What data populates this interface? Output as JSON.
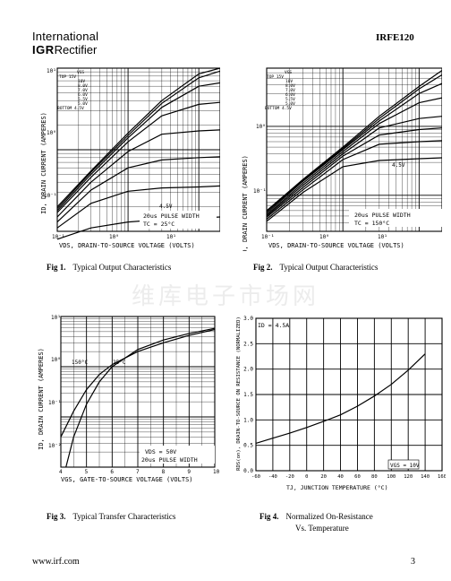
{
  "header": {
    "company_line1": "International",
    "company_line2_bold": "IGR",
    "company_line2_rest": "Rectifier",
    "part_number": "IRFE120"
  },
  "watermark": "维库电子市场网",
  "footer": {
    "url": "www.irf.com",
    "page": "3"
  },
  "figures": [
    {
      "number": "Fig 1.",
      "caption": "Typical Output Characteristics",
      "ylabel": "ID, DRAIN CURRENT (AMPERES)",
      "xlabel": "VDS, DRAIN-TO-SOURCE VOLTAGE (VOLTS)",
      "yticks": [
        "10¹",
        "10⁰",
        "10⁻¹"
      ],
      "xticks": [
        "10⁻¹",
        "10⁰",
        "10¹"
      ],
      "legend": [
        "VGS",
        "TOP  15V",
        "10V",
        "8.0V",
        "7.0V",
        "6.0V",
        "5.5V",
        "5.0V",
        "BOTTOM 4.5V"
      ],
      "curve_label": "4.5V",
      "note1": "20us PULSE WIDTH",
      "note2": "TC = 25°C"
    },
    {
      "number": "Fig 2.",
      "caption": "Typical Output Characteristics",
      "ylabel": "ID, DRAIN CURRENT (AMPERES)",
      "xlabel": "VDS, DRAIN-TO-SOURCE VOLTAGE (VOLTS)",
      "yticks": [
        "10⁰",
        "10⁻¹"
      ],
      "xticks": [
        "10⁻¹",
        "10⁰",
        "10¹"
      ],
      "legend": [
        "VGS",
        "TOP  15V",
        "10V",
        "8.0V",
        "7.0V",
        "6.0V",
        "5.5V",
        "5.0V",
        "BOTTOM 4.5V"
      ],
      "curve_label": "4.5V",
      "note1": "20us PULSE WIDTH",
      "note2": "TC = 150°C"
    },
    {
      "number": "Fig 3.",
      "caption": "Typical Transfer Characteristics",
      "ylabel": "ID, DRAIN CURRENT (AMPERES)",
      "xlabel": "VGS, GATE-TO-SOURCE VOLTAGE (VOLTS)",
      "yticks": [
        "10¹",
        "10⁰",
        "10⁻¹",
        "10⁻²"
      ],
      "xticks": [
        "4",
        "5",
        "6",
        "7",
        "8",
        "9",
        "10"
      ],
      "label_150": "150°C",
      "label_25": "25°C",
      "note1": "VDS = 50V",
      "note2": "20us PULSE WIDTH"
    },
    {
      "number": "Fig 4.",
      "caption": "Normalized On-Resistance",
      "caption2": "Vs. Temperature",
      "ylabel": "RDS(on), DRAIN-TO-SOURCE ON RESISTANCE (NORMALIZED)",
      "xlabel": "TJ, JUNCTION TEMPERATURE (°C)",
      "yticks": [
        "3.0",
        "2.5",
        "2.0",
        "1.5",
        "1.0",
        "0.5",
        "0.0"
      ],
      "xticks": [
        "-60",
        "-40",
        "-20",
        "0",
        "20",
        "40",
        "60",
        "80",
        "100",
        "120",
        "140",
        "160"
      ],
      "note_id": "ID = 4.5A",
      "note_vgs": "VGS = 10V"
    }
  ],
  "chart_data": [
    {
      "type": "line",
      "title": "Typical Output Characteristics",
      "scale": "log-log",
      "xlabel": "VDS, DRAIN-TO-SOURCE VOLTAGE (VOLTS)",
      "ylabel": "ID, DRAIN CURRENT (AMPERES)",
      "xlim": [
        0.1,
        20
      ],
      "ylim": [
        0.1,
        10
      ],
      "series": [
        {
          "name": "15V",
          "x": [
            0.1,
            0.3,
            1,
            3,
            10,
            20
          ],
          "y": [
            0.2,
            0.55,
            1.6,
            4.0,
            8.5,
            10
          ]
        },
        {
          "name": "10V",
          "x": [
            0.1,
            0.3,
            1,
            3,
            10,
            20
          ],
          "y": [
            0.19,
            0.53,
            1.5,
            3.7,
            7.6,
            9.2
          ]
        },
        {
          "name": "8.0V",
          "x": [
            0.1,
            0.3,
            1,
            3,
            10,
            20
          ],
          "y": [
            0.18,
            0.5,
            1.4,
            3.3,
            6.0,
            6.6
          ]
        },
        {
          "name": "7.0V",
          "x": [
            0.1,
            0.3,
            1,
            3,
            10,
            20
          ],
          "y": [
            0.17,
            0.46,
            1.25,
            2.6,
            3.6,
            3.8
          ]
        },
        {
          "name": "6.0V",
          "x": [
            0.1,
            0.3,
            1,
            3,
            10,
            20
          ],
          "y": [
            0.15,
            0.4,
            0.95,
            1.55,
            1.7,
            1.75
          ]
        },
        {
          "name": "5.5V",
          "x": [
            0.1,
            0.3,
            1,
            3,
            10,
            20
          ],
          "y": [
            0.13,
            0.32,
            0.6,
            0.75,
            0.8,
            0.82
          ]
        },
        {
          "name": "5.0V",
          "x": [
            0.1,
            0.3,
            1,
            3,
            10,
            20
          ],
          "y": [
            0.11,
            0.22,
            0.31,
            0.34,
            0.35,
            0.36
          ]
        },
        {
          "name": "4.5V",
          "x": [
            0.1,
            0.3,
            1,
            3,
            10,
            20
          ],
          "y": [
            0.08,
            0.11,
            0.13,
            0.14,
            0.145,
            0.15
          ]
        }
      ]
    },
    {
      "type": "line",
      "title": "Typical Output Characteristics",
      "scale": "log-log",
      "xlabel": "VDS, DRAIN-TO-SOURCE VOLTAGE (VOLTS)",
      "ylabel": "ID, DRAIN CURRENT (AMPERES)",
      "xlim": [
        0.1,
        20
      ],
      "ylim": [
        0.03,
        7
      ],
      "series": [
        {
          "name": "15V",
          "x": [
            0.1,
            0.3,
            1,
            3,
            10,
            20
          ],
          "y": [
            0.06,
            0.17,
            0.5,
            1.4,
            3.8,
            6.5
          ]
        },
        {
          "name": "10V",
          "x": [
            0.1,
            0.3,
            1,
            3,
            10,
            20
          ],
          "y": [
            0.058,
            0.165,
            0.48,
            1.3,
            3.5,
            5.6
          ]
        },
        {
          "name": "8.0V",
          "x": [
            0.1,
            0.3,
            1,
            3,
            10,
            20
          ],
          "y": [
            0.055,
            0.16,
            0.46,
            1.2,
            3.0,
            4.2
          ]
        },
        {
          "name": "7.0V",
          "x": [
            0.1,
            0.3,
            1,
            3,
            10,
            20
          ],
          "y": [
            0.052,
            0.15,
            0.43,
            1.1,
            2.2,
            2.6
          ]
        },
        {
          "name": "6.0V",
          "x": [
            0.1,
            0.3,
            1,
            3,
            10,
            20
          ],
          "y": [
            0.05,
            0.14,
            0.4,
            0.95,
            1.3,
            1.4
          ]
        },
        {
          "name": "5.5V",
          "x": [
            0.1,
            0.3,
            1,
            3,
            10,
            20
          ],
          "y": [
            0.048,
            0.13,
            0.37,
            0.75,
            0.9,
            0.95
          ]
        },
        {
          "name": "5.0V",
          "x": [
            0.1,
            0.3,
            1,
            3,
            10,
            20
          ],
          "y": [
            0.045,
            0.12,
            0.33,
            0.55,
            0.6,
            0.62
          ]
        },
        {
          "name": "4.5V",
          "x": [
            0.1,
            0.3,
            1,
            3,
            10,
            20
          ],
          "y": [
            0.042,
            0.11,
            0.26,
            0.32,
            0.34,
            0.35
          ]
        }
      ]
    },
    {
      "type": "line",
      "title": "Typical Transfer Characteristics",
      "scale": "log-y",
      "xlabel": "VGS, GATE-TO-SOURCE VOLTAGE (VOLTS)",
      "ylabel": "ID, DRAIN CURRENT (AMPERES)",
      "xlim": [
        4,
        10
      ],
      "ylim": [
        0.01,
        10
      ],
      "series": [
        {
          "name": "150°C",
          "x": [
            4.0,
            4.5,
            5,
            5.5,
            6,
            7,
            8,
            9,
            10
          ],
          "y": [
            0.04,
            0.13,
            0.35,
            0.7,
            1.1,
            2.0,
            3.0,
            4.2,
            5.5
          ]
        },
        {
          "name": "25°C",
          "x": [
            4.2,
            4.5,
            5,
            5.5,
            6,
            7,
            8,
            9,
            10
          ],
          "y": [
            0.01,
            0.04,
            0.18,
            0.5,
            1.0,
            2.2,
            3.4,
            4.6,
            5.8
          ]
        }
      ]
    },
    {
      "type": "line",
      "title": "Normalized On-Resistance Vs. Temperature",
      "xlabel": "TJ, JUNCTION TEMPERATURE (°C)",
      "ylabel": "RDS(on), DRAIN-TO-SOURCE ON RESISTANCE (NORMALIZED)",
      "xlim": [
        -60,
        160
      ],
      "ylim": [
        0.0,
        3.0
      ],
      "series": [
        {
          "name": "",
          "x": [
            -60,
            -40,
            -20,
            0,
            20,
            40,
            60,
            80,
            100,
            120,
            140
          ],
          "y": [
            0.54,
            0.64,
            0.74,
            0.85,
            0.97,
            1.1,
            1.27,
            1.47,
            1.7,
            1.98,
            2.3
          ]
        }
      ]
    }
  ]
}
